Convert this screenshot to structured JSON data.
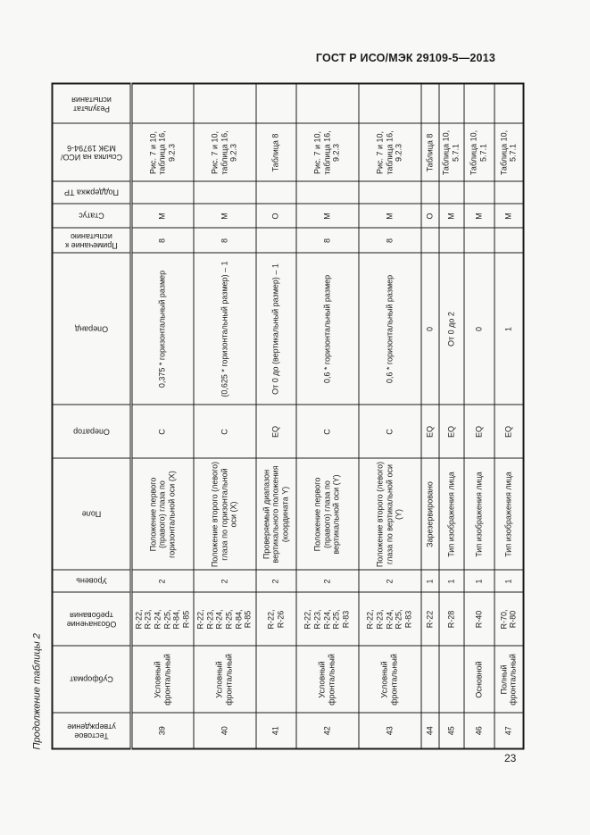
{
  "page": {
    "doc_code": "ГОСТ Р ИСО/МЭК 29109-5—2013",
    "page_number": "23",
    "table_caption": "Продолжение таблицы 2"
  },
  "table": {
    "columns": [
      {
        "key": "id",
        "label": "Тестовое утверждение"
      },
      {
        "key": "subformat",
        "label": "Субформат"
      },
      {
        "key": "req",
        "label": "Обозначение требования"
      },
      {
        "key": "level",
        "label": "Уровень"
      },
      {
        "key": "field",
        "label": "Поле"
      },
      {
        "key": "operator",
        "label": "Оператор"
      },
      {
        "key": "operand",
        "label": "Операнд"
      },
      {
        "key": "note",
        "label": "Примечание к испытанию"
      },
      {
        "key": "status",
        "label": "Статус"
      },
      {
        "key": "tr",
        "label": "Поддержка ТР"
      },
      {
        "key": "ref",
        "label": "Ссылка на ИСО/МЭК 19794-6"
      },
      {
        "key": "result",
        "label": "Результат испытания"
      }
    ],
    "rows": [
      {
        "id": "39",
        "subformat": "Условный фронтальный",
        "req": "R-22,\nR-23,\nR-24,\nR-25,\nR-84,\nR-85",
        "level": "2",
        "field": "Положение первого (правого) глаза по горизонтальной оси (X)",
        "operator": "C",
        "operand": "0,375 * горизонтальный размер",
        "note": "8",
        "status": "M",
        "tr": "",
        "ref": "Рис. 7 и 10,\nтаблица 16,\n9.2.3",
        "result": ""
      },
      {
        "id": "40",
        "subformat": "Условный фронтальный",
        "req": "R-22,\nR-23,\nR-24,\nR-25,\nR-84,\nR-85",
        "level": "2",
        "field": "Положение второго (левого) глаза по горизонтальной оси (X)",
        "operator": "C",
        "operand": "(0,625 * горизонтальный размер) – 1",
        "note": "8",
        "status": "M",
        "tr": "",
        "ref": "Рис. 7 и 10,\nтаблица 16,\n9.2.3",
        "result": ""
      },
      {
        "id": "41",
        "subformat": "",
        "req": "R-22,\nR-26",
        "level": "2",
        "field": "Проверяемый диапазон вертикального положения (координата Y)",
        "operator": "EQ",
        "operand": "От 0 до (вертикальный размер) – 1",
        "note": "",
        "status": "O",
        "tr": "",
        "ref": "Таблица 8",
        "result": ""
      },
      {
        "id": "42",
        "subformat": "Условный фронтальный",
        "req": "R-22,\nR-23,\nR-24,\nR-25,\nR-83",
        "level": "2",
        "field": "Положение первого (правого) глаза по вертикальной оси (Y)",
        "operator": "C",
        "operand": "0,6 * горизонтальный размер",
        "note": "8",
        "status": "M",
        "tr": "",
        "ref": "Рис. 7 и 10,\nтаблица 16,\n9.2.3",
        "result": ""
      },
      {
        "id": "43",
        "subformat": "Условный фронтальный",
        "req": "R-22,\nR-23,\nR-24,\nR-25,\nR-83",
        "level": "2",
        "field": "Положение второго (левого) глаза по вертикальной оси (Y)",
        "operator": "C",
        "operand": "0,6 * горизонтальный размер",
        "note": "8",
        "status": "M",
        "tr": "",
        "ref": "Рис. 7 и 10,\nтаблица 16,\n9.2.3",
        "result": ""
      },
      {
        "id": "44",
        "subformat": "",
        "req": "R-22",
        "level": "1",
        "field": "Зарезервировано",
        "operator": "EQ",
        "operand": "0",
        "note": "",
        "status": "O",
        "tr": "",
        "ref": "Таблица 8",
        "result": ""
      },
      {
        "id": "45",
        "subformat": "",
        "req": "R-28",
        "level": "1",
        "field": "Тип изображения лица",
        "operator": "EQ",
        "operand": "От 0 до 2",
        "note": "",
        "status": "M",
        "tr": "",
        "ref": "Таблица 10,\n5.7.1",
        "result": ""
      },
      {
        "id": "46",
        "subformat": "Основной",
        "req": "R-40",
        "level": "1",
        "field": "Тип изображения лица",
        "operator": "EQ",
        "operand": "0",
        "note": "",
        "status": "M",
        "tr": "",
        "ref": "Таблица 10,\n5.7.1",
        "result": ""
      },
      {
        "id": "47",
        "subformat": "Полный фронтальный",
        "req": "R-70,\nR-80",
        "level": "1",
        "field": "Тип изображения лица",
        "operator": "EQ",
        "operand": "1",
        "note": "",
        "status": "M",
        "tr": "",
        "ref": "Таблица 10,\n5.7.1",
        "result": ""
      }
    ]
  }
}
